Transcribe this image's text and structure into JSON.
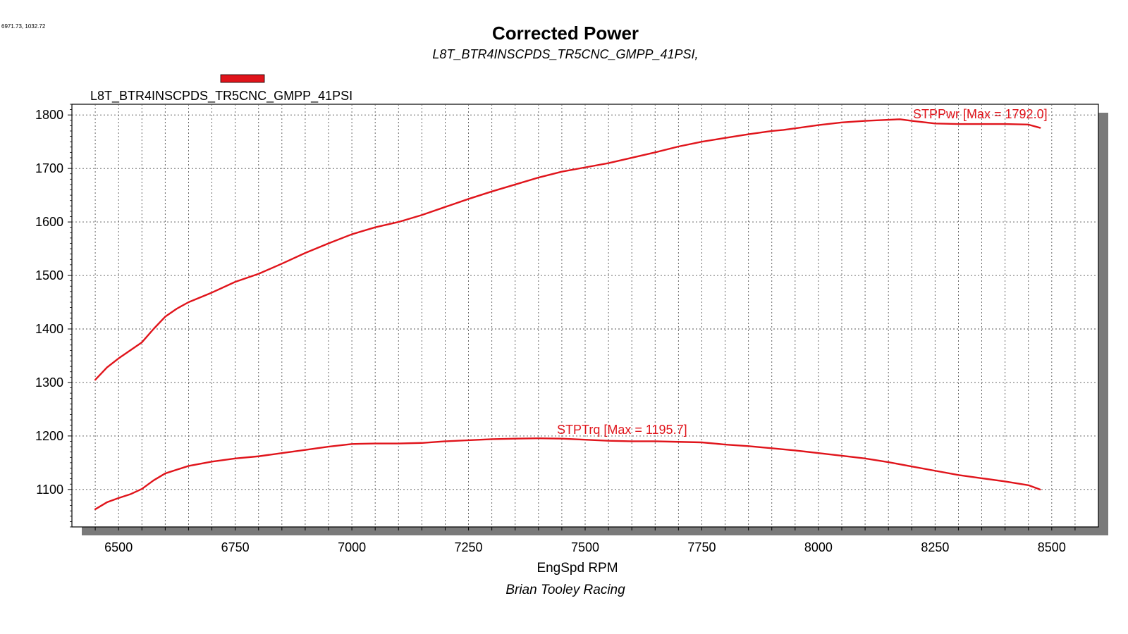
{
  "corner_readout": "6971.73, 1032.72",
  "footer": "Brian Tooley Racing",
  "chart_data": {
    "type": "line",
    "title": "Corrected Power",
    "subtitle": "L8T_BTR4INSCPDS_TR5CNC_GMPP_41PSI,",
    "xlabel": "EngSpd RPM",
    "ylabel": "",
    "xlim": [
      6400,
      8600
    ],
    "ylim": [
      1030,
      1820
    ],
    "xticks": [
      6500,
      6750,
      7000,
      7250,
      7500,
      7750,
      8000,
      8250,
      8500
    ],
    "yticks": [
      1100,
      1200,
      1300,
      1400,
      1500,
      1600,
      1700,
      1800
    ],
    "grid": true,
    "legend": {
      "placement": "top-left",
      "entries": [
        {
          "label": "L8T_BTR4INSCPDS_TR5CNC_GMPP_41PSI",
          "color": "#e0141b"
        }
      ]
    },
    "series": [
      {
        "key": "STPPwr",
        "color": "#e0141b",
        "annotation": "STPPwr [Max = 1792.0]",
        "x": [
          6450,
          6475,
          6500,
          6525,
          6550,
          6575,
          6600,
          6625,
          6650,
          6700,
          6750,
          6800,
          6850,
          6900,
          6950,
          7000,
          7050,
          7100,
          7150,
          7200,
          7250,
          7300,
          7350,
          7400,
          7450,
          7500,
          7550,
          7600,
          7650,
          7700,
          7750,
          7800,
          7850,
          7900,
          7925,
          7950,
          8000,
          8050,
          8100,
          8150,
          8175,
          8200,
          8250,
          8300,
          8350,
          8400,
          8450,
          8475
        ],
        "y": [
          1305,
          1328,
          1345,
          1360,
          1375,
          1400,
          1423,
          1438,
          1450,
          1468,
          1488,
          1503,
          1522,
          1542,
          1560,
          1577,
          1590,
          1600,
          1613,
          1628,
          1643,
          1657,
          1670,
          1683,
          1694,
          1702,
          1710,
          1720,
          1730,
          1741,
          1750,
          1757,
          1764,
          1770,
          1772,
          1775,
          1781,
          1786,
          1789,
          1791,
          1792,
          1789,
          1784,
          1783,
          1783,
          1783,
          1782,
          1776
        ]
      },
      {
        "key": "STPTrq",
        "color": "#e0141b",
        "annotation": "STPTrq [Max = 1195.7]",
        "x": [
          6450,
          6475,
          6500,
          6525,
          6550,
          6575,
          6600,
          6650,
          6700,
          6750,
          6800,
          6850,
          6900,
          6950,
          7000,
          7050,
          7100,
          7150,
          7200,
          7250,
          7300,
          7350,
          7400,
          7450,
          7500,
          7550,
          7600,
          7650,
          7700,
          7750,
          7800,
          7850,
          7900,
          7950,
          8000,
          8050,
          8100,
          8150,
          8200,
          8250,
          8300,
          8350,
          8400,
          8450,
          8475
        ],
        "y": [
          1063,
          1076,
          1084,
          1091,
          1101,
          1117,
          1130,
          1144,
          1152,
          1158,
          1162,
          1168,
          1174,
          1180,
          1185,
          1186,
          1186,
          1187,
          1190,
          1192,
          1194,
          1195,
          1195.7,
          1195,
          1193,
          1191,
          1190,
          1190,
          1189,
          1188,
          1184,
          1181,
          1177,
          1173,
          1168,
          1163,
          1158,
          1151,
          1143,
          1135,
          1127,
          1121,
          1115,
          1108,
          1100
        ]
      }
    ]
  }
}
